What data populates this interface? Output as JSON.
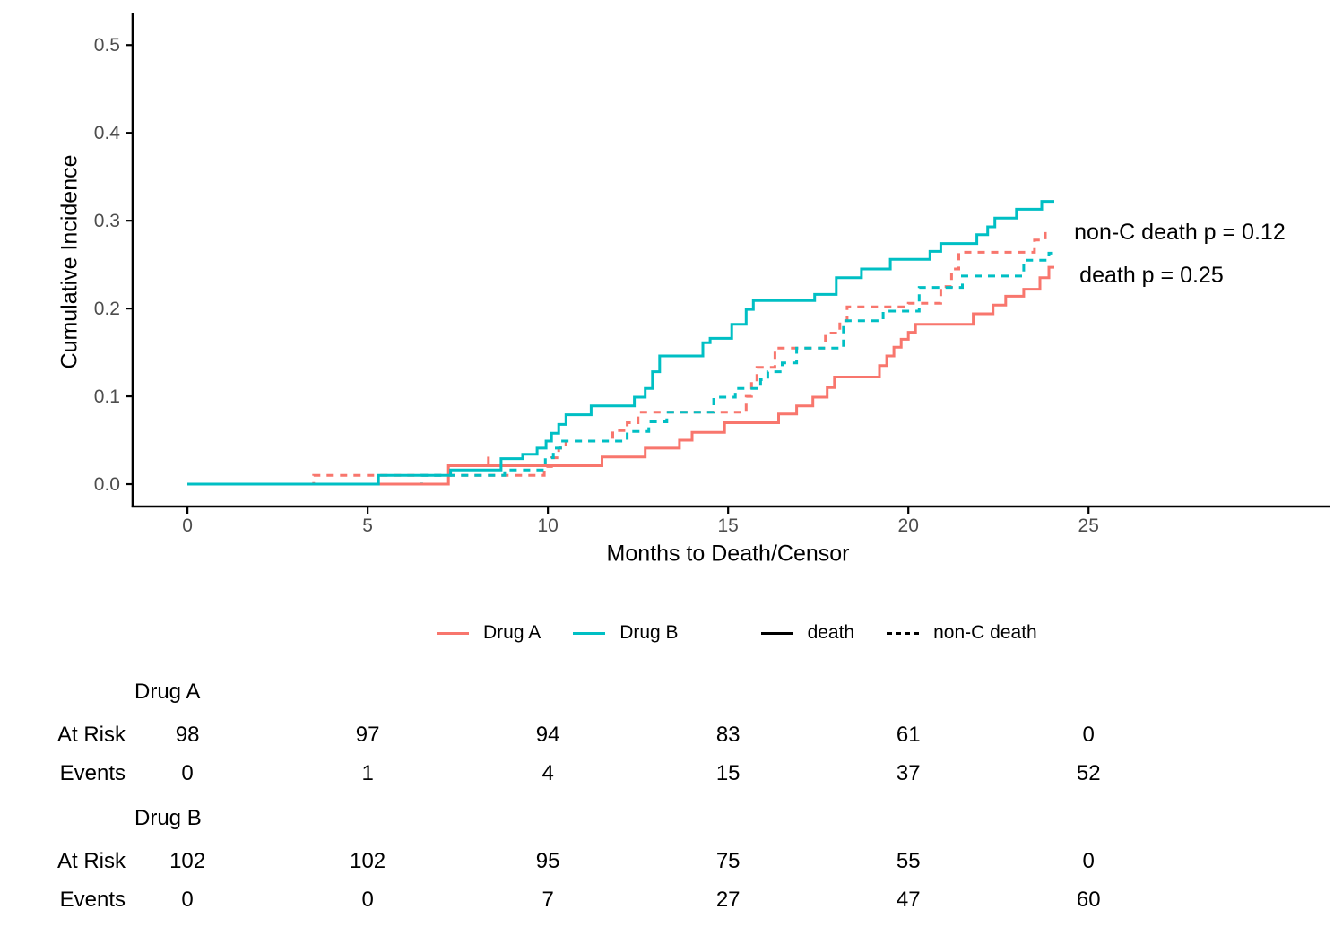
{
  "chart_data": {
    "type": "line",
    "subtype": "step-function-cumulative-incidence",
    "title": "",
    "xlabel": "Months to Death/Censor",
    "ylabel": "Cumulative Incidence",
    "xlim": [
      -1.52,
      31.71
    ],
    "ylim": [
      -0.0255,
      0.537
    ],
    "x_ticks": [
      0,
      5,
      10,
      15,
      20,
      25
    ],
    "x_tick_labels": [
      "0",
      "5",
      "10",
      "15",
      "20",
      "25"
    ],
    "y_ticks": [
      0.0,
      0.1,
      0.2,
      0.3,
      0.4,
      0.5
    ],
    "y_tick_labels": [
      "0.0",
      "0.1",
      "0.2",
      "0.3",
      "0.4",
      "0.5"
    ],
    "grid": false,
    "legend_position": "bottom",
    "series": [
      {
        "name": "Drug A non-C death",
        "group": "Drug A",
        "event": "non-C death",
        "color": "#F8766D",
        "dash": "dashed",
        "end_x": 24.0,
        "points": [
          [
            0,
            0
          ],
          [
            3.5,
            0.01
          ],
          [
            9.9,
            0.02
          ],
          [
            10.1,
            0.03
          ],
          [
            10.3,
            0.041
          ],
          [
            10.5,
            0.049
          ],
          [
            11.8,
            0.061
          ],
          [
            12.2,
            0.07
          ],
          [
            12.5,
            0.082
          ],
          [
            15.5,
            0.1
          ],
          [
            15.65,
            0.117
          ],
          [
            15.8,
            0.133
          ],
          [
            16.3,
            0.155
          ],
          [
            17.7,
            0.172
          ],
          [
            18.1,
            0.186
          ],
          [
            18.3,
            0.202
          ],
          [
            20.0,
            0.206
          ],
          [
            20.9,
            0.225
          ],
          [
            21.2,
            0.245
          ],
          [
            21.4,
            0.264
          ],
          [
            23.5,
            0.278
          ],
          [
            23.8,
            0.287
          ]
        ]
      },
      {
        "name": "Drug B non-C death",
        "group": "Drug B",
        "event": "non-C death",
        "color": "#00BFC4",
        "dash": "dashed",
        "end_x": 24.05,
        "points": [
          [
            0,
            0
          ],
          [
            6.5,
            0.01
          ],
          [
            8.8,
            0.016
          ],
          [
            9.93,
            0.03
          ],
          [
            10.15,
            0.041
          ],
          [
            10.35,
            0.049
          ],
          [
            12.2,
            0.06
          ],
          [
            12.8,
            0.071
          ],
          [
            13.3,
            0.082
          ],
          [
            14.6,
            0.099
          ],
          [
            15.2,
            0.109
          ],
          [
            15.9,
            0.119
          ],
          [
            16.1,
            0.128
          ],
          [
            16.5,
            0.138
          ],
          [
            16.9,
            0.155
          ],
          [
            18.2,
            0.186
          ],
          [
            19.3,
            0.197
          ],
          [
            20.3,
            0.224
          ],
          [
            21.5,
            0.237
          ],
          [
            23.2,
            0.255
          ],
          [
            23.9,
            0.263
          ]
        ]
      },
      {
        "name": "Drug A death",
        "group": "Drug A",
        "event": "death",
        "color": "#F8766D",
        "dash": "solid",
        "end_x": 24.05,
        "points": [
          [
            0,
            0
          ],
          [
            7.24,
            0.021
          ],
          [
            11.5,
            0.031
          ],
          [
            12.7,
            0.041
          ],
          [
            13.65,
            0.05
          ],
          [
            14.0,
            0.059
          ],
          [
            14.9,
            0.07
          ],
          [
            16.4,
            0.08
          ],
          [
            16.9,
            0.089
          ],
          [
            17.35,
            0.099
          ],
          [
            17.75,
            0.11
          ],
          [
            17.95,
            0.122
          ],
          [
            19.2,
            0.135
          ],
          [
            19.4,
            0.146
          ],
          [
            19.6,
            0.156
          ],
          [
            19.8,
            0.165
          ],
          [
            20.0,
            0.173
          ],
          [
            20.2,
            0.182
          ],
          [
            21.8,
            0.194
          ],
          [
            22.35,
            0.204
          ],
          [
            22.7,
            0.214
          ],
          [
            23.2,
            0.222
          ],
          [
            23.65,
            0.235
          ],
          [
            23.9,
            0.247
          ]
        ]
      },
      {
        "name": "Drug B death",
        "group": "Drug B",
        "event": "death",
        "color": "#00BFC4",
        "dash": "solid",
        "end_x": 24.05,
        "points": [
          [
            0,
            0
          ],
          [
            5.3,
            0.01
          ],
          [
            7.3,
            0.016
          ],
          [
            8.7,
            0.029
          ],
          [
            9.3,
            0.034
          ],
          [
            9.7,
            0.041
          ],
          [
            9.95,
            0.049
          ],
          [
            10.1,
            0.058
          ],
          [
            10.3,
            0.068
          ],
          [
            10.5,
            0.079
          ],
          [
            11.2,
            0.089
          ],
          [
            12.4,
            0.099
          ],
          [
            12.7,
            0.109
          ],
          [
            12.9,
            0.128
          ],
          [
            13.1,
            0.146
          ],
          [
            14.3,
            0.161
          ],
          [
            14.5,
            0.166
          ],
          [
            15.1,
            0.182
          ],
          [
            15.5,
            0.199
          ],
          [
            15.7,
            0.209
          ],
          [
            17.4,
            0.216
          ],
          [
            18.0,
            0.235
          ],
          [
            18.7,
            0.245
          ],
          [
            19.5,
            0.256
          ],
          [
            20.6,
            0.265
          ],
          [
            20.9,
            0.274
          ],
          [
            21.9,
            0.284
          ],
          [
            22.2,
            0.293
          ],
          [
            22.4,
            0.303
          ],
          [
            23.0,
            0.313
          ],
          [
            23.7,
            0.322
          ]
        ]
      }
    ],
    "censor_marks": [
      {
        "series": "Drug A death",
        "x": 8.35,
        "y": 0.021,
        "color": "#F8766D"
      }
    ],
    "annotations": [
      {
        "text": "non-C death p = 0.12",
        "x": 24.6,
        "y": 0.287
      },
      {
        "text": "death p = 0.25",
        "x": 24.75,
        "y": 0.238
      }
    ]
  },
  "legend": {
    "items": [
      {
        "label": "Drug A",
        "color": "#F8766D",
        "dash": "solid"
      },
      {
        "label": "Drug B",
        "color": "#00BFC4",
        "dash": "solid"
      },
      {
        "label": "death",
        "color": "#000000",
        "dash": "solid"
      },
      {
        "label": "non-C death",
        "color": "#000000",
        "dash": "dashed"
      }
    ]
  },
  "risk_table": {
    "time_points": [
      0,
      5,
      10,
      15,
      20,
      25
    ],
    "row_labels": [
      "At Risk",
      "Events"
    ],
    "groups": [
      {
        "label": "Drug A",
        "rows": [
          {
            "label": "At Risk",
            "values": [
              "98",
              "97",
              "94",
              "83",
              "61",
              "0"
            ]
          },
          {
            "label": "Events",
            "values": [
              "0",
              "1",
              "4",
              "15",
              "37",
              "52"
            ]
          }
        ]
      },
      {
        "label": "Drug B",
        "rows": [
          {
            "label": "At Risk",
            "values": [
              "102",
              "102",
              "95",
              "75",
              "55",
              "0"
            ]
          },
          {
            "label": "Events",
            "values": [
              "0",
              "0",
              "7",
              "27",
              "47",
              "60"
            ]
          }
        ]
      }
    ]
  },
  "colors": {
    "drug_a": "#F8766D",
    "drug_b": "#00BFC4",
    "axis": "#000000",
    "tick_label": "#4D4D4D",
    "background": "#FFFFFF"
  }
}
